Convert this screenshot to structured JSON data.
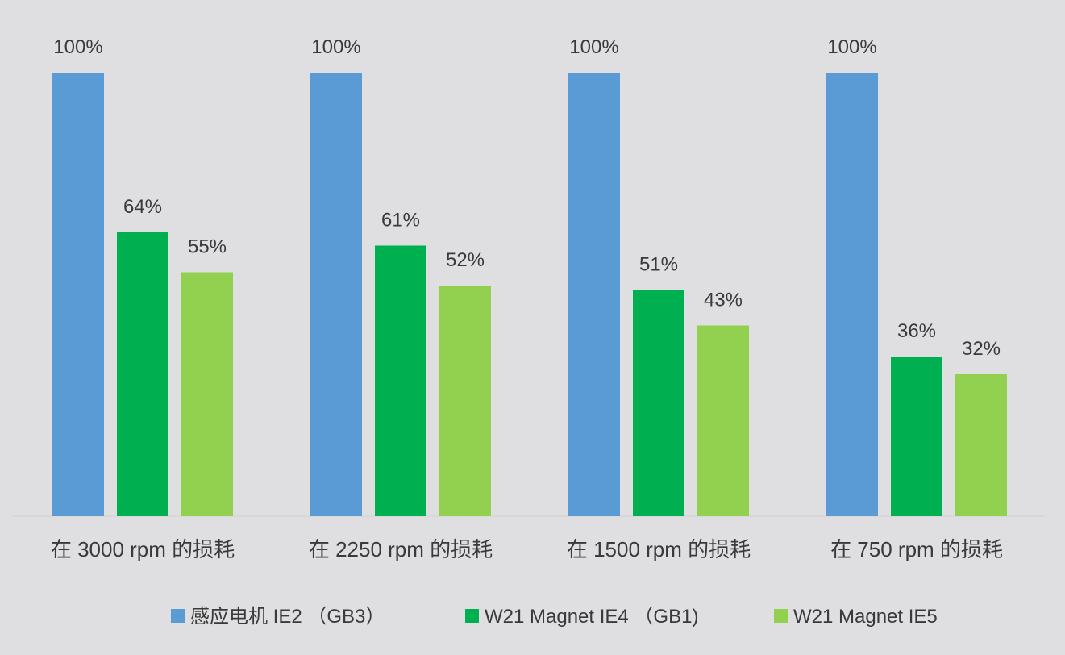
{
  "chart_data": {
    "type": "bar",
    "title": "",
    "xlabel": "",
    "ylabel": "",
    "ylim": [
      0,
      100
    ],
    "grid": false,
    "legend_position": "bottom",
    "categories": [
      "在 3000 rpm 的损耗",
      "在 2250 rpm 的损耗",
      "在 1500 rpm 的损耗",
      "在 750 rpm 的损耗"
    ],
    "series": [
      {
        "name": "感应电机 IE2 （GB3）",
        "color": "#5b9bd5",
        "values": [
          100,
          100,
          100,
          100
        ],
        "labels": [
          "100%",
          "100%",
          "100%",
          "100%"
        ]
      },
      {
        "name": "W21 Magnet IE4 （GB1)",
        "color": "#00b050",
        "values": [
          64,
          61,
          51,
          36
        ],
        "labels": [
          "64%",
          "61%",
          "51%",
          "36%"
        ]
      },
      {
        "name": "W21 Magnet IE5",
        "color": "#92d050",
        "values": [
          55,
          52,
          43,
          32
        ],
        "labels": [
          "55%",
          "52%",
          "43%",
          "32%"
        ]
      }
    ]
  }
}
